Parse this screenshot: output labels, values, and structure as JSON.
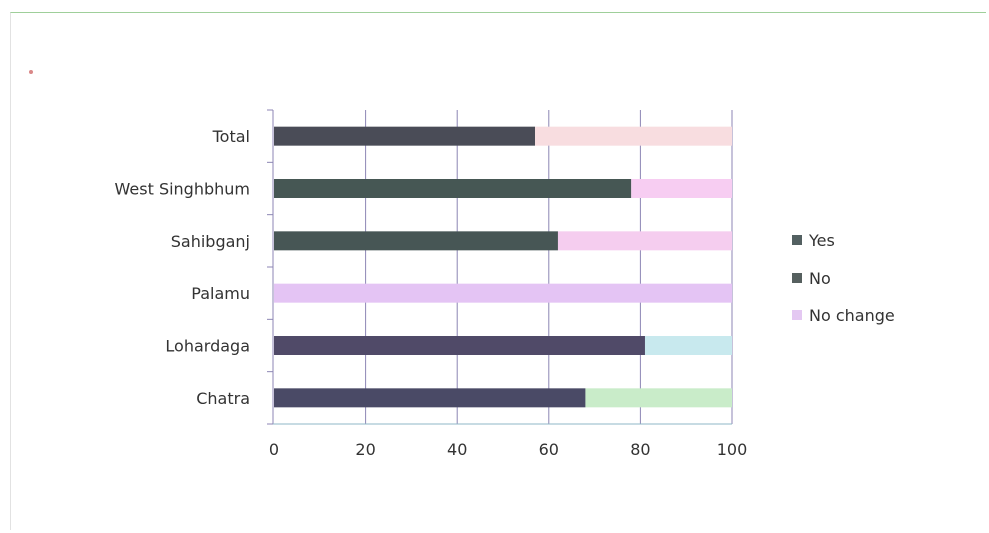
{
  "chart_data": {
    "type": "bar",
    "orientation": "horizontal",
    "stacked": true,
    "title": "",
    "xlabel": "",
    "ylabel": "",
    "categories": [
      "Chatra",
      "Lohardaga",
      "Palamu",
      "Sahibganj",
      "West Singhbhum",
      "Total"
    ],
    "series": [
      {
        "name": "Yes",
        "values": [
          68,
          81,
          0,
          62,
          78,
          57
        ]
      },
      {
        "name": "No",
        "values": [
          0,
          0,
          0,
          0,
          0,
          0
        ]
      },
      {
        "name": "No change",
        "values": [
          32,
          19,
          100,
          38,
          22,
          43
        ]
      }
    ],
    "bar_colors": [
      [
        "#4a4a66",
        "#c9ecc9"
      ],
      [
        "#504a68",
        "#c8e9ee"
      ],
      [
        "#e4c4f4",
        "#e4c4f4"
      ],
      [
        "#475655",
        "#f5cdef"
      ],
      [
        "#465754",
        "#f7cdf2"
      ],
      [
        "#4a4c57",
        "#f8dde0"
      ]
    ],
    "legend_colors": [
      "#536061",
      "#56605f",
      "#e4c8f2"
    ],
    "xlim": [
      0,
      100
    ],
    "xticks": [
      0,
      20,
      40,
      60,
      80,
      100
    ],
    "grid": true,
    "legend_position": "right"
  }
}
